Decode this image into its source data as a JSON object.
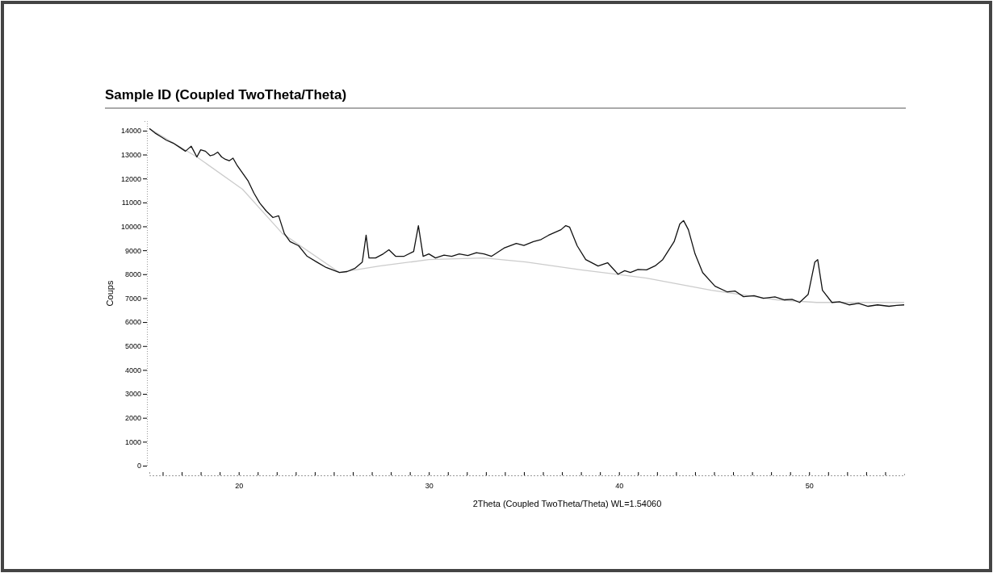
{
  "chart_data": {
    "type": "line",
    "title": "Sample ID (Coupled TwoTheta/Theta)",
    "xlabel": "2Theta (Coupled TwoTheta/Theta) WL=1.54060",
    "ylabel": "Coups",
    "xlim": [
      15.3,
      55
    ],
    "ylim": [
      0,
      14400
    ],
    "xticks": [
      {
        "value": 16,
        "label": null
      },
      {
        "value": 17,
        "label": null
      },
      {
        "value": 18,
        "label": null
      },
      {
        "value": 19,
        "label": null
      },
      20,
      {
        "value": 21,
        "label": null
      },
      {
        "value": 22,
        "label": null
      },
      {
        "value": 23,
        "label": null
      },
      {
        "value": 24,
        "label": null
      },
      {
        "value": 25,
        "label": null
      },
      {
        "value": 26,
        "label": null
      },
      {
        "value": 27,
        "label": null
      },
      {
        "value": 28,
        "label": null
      },
      {
        "value": 29,
        "label": null
      },
      30,
      {
        "value": 31,
        "label": null
      },
      {
        "value": 32,
        "label": null
      },
      {
        "value": 33,
        "label": null
      },
      {
        "value": 34,
        "label": null
      },
      {
        "value": 35,
        "label": null
      },
      {
        "value": 36,
        "label": null
      },
      {
        "value": 37,
        "label": null
      },
      {
        "value": 38,
        "label": null
      },
      {
        "value": 39,
        "label": null
      },
      40,
      {
        "value": 41,
        "label": null
      },
      {
        "value": 42,
        "label": null
      },
      {
        "value": 43,
        "label": null
      },
      {
        "value": 44,
        "label": null
      },
      {
        "value": 45,
        "label": null
      },
      {
        "value": 46,
        "label": null
      },
      {
        "value": 47,
        "label": null
      },
      {
        "value": 48,
        "label": null
      },
      {
        "value": 49,
        "label": null
      },
      50,
      {
        "value": 51,
        "label": null
      },
      {
        "value": 52,
        "label": null
      },
      {
        "value": 53,
        "label": null
      },
      {
        "value": 54,
        "label": null
      }
    ],
    "yticks": [
      0,
      1000,
      2000,
      3000,
      4000,
      5000,
      6000,
      7000,
      8000,
      9000,
      10000,
      11000,
      12000,
      13000,
      14000
    ],
    "grid": false,
    "marker": "none",
    "line_style": "solid",
    "series": [
      {
        "color": "#cccccc",
        "x": [
          15.3,
          17.8,
          20.2,
          22.3,
          25.3,
          27.4,
          30.0,
          32.9,
          35.1,
          38.0,
          41.45,
          44.85,
          48.3,
          50.4,
          55.0
        ],
        "values": [
          14090,
          12900,
          11550,
          9700,
          8070,
          8340,
          8610,
          8680,
          8510,
          8180,
          7840,
          7330,
          6930,
          6820,
          6820
        ]
      },
      {
        "color": "#111111",
        "x": [
          15.3,
          15.6,
          15.9,
          16.2,
          16.55,
          16.9,
          17.2,
          17.5,
          17.8,
          18.0,
          18.25,
          18.5,
          18.7,
          18.9,
          19.1,
          19.3,
          19.5,
          19.7,
          19.9,
          20.2,
          20.5,
          20.8,
          21.1,
          21.45,
          21.8,
          22.1,
          22.4,
          22.7,
          23.15,
          23.6,
          24.1,
          24.6,
          25.3,
          25.7,
          26.1,
          26.5,
          26.7,
          26.85,
          27.2,
          27.6,
          27.9,
          28.25,
          28.7,
          29.2,
          29.45,
          29.7,
          30.0,
          30.35,
          30.8,
          31.2,
          31.6,
          32.05,
          32.5,
          32.9,
          33.3,
          33.95,
          34.6,
          35.0,
          35.5,
          35.9,
          36.3,
          36.95,
          37.2,
          37.4,
          37.8,
          38.25,
          38.9,
          39.4,
          39.95,
          40.3,
          40.6,
          41.0,
          41.45,
          41.9,
          42.3,
          42.9,
          43.2,
          43.4,
          43.65,
          44.0,
          44.4,
          45.05,
          45.7,
          46.1,
          46.55,
          47.1,
          47.6,
          48.2,
          48.7,
          49.1,
          49.5,
          49.95,
          50.3,
          50.45,
          50.7,
          51.2,
          51.6,
          52.1,
          52.6,
          53.1,
          53.6,
          54.2,
          54.6,
          55.0
        ],
        "values": [
          14090,
          13900,
          13750,
          13600,
          13480,
          13300,
          13140,
          13350,
          12900,
          13200,
          13140,
          12950,
          13000,
          13100,
          12900,
          12800,
          12740,
          12850,
          12570,
          12230,
          11890,
          11390,
          10980,
          10640,
          10370,
          10440,
          9700,
          9360,
          9190,
          8750,
          8510,
          8280,
          8070,
          8110,
          8240,
          8510,
          9630,
          8680,
          8680,
          8850,
          9020,
          8750,
          8750,
          8950,
          10030,
          8750,
          8850,
          8680,
          8800,
          8750,
          8850,
          8780,
          8900,
          8850,
          8750,
          9090,
          9290,
          9200,
          9360,
          9450,
          9630,
          9860,
          10030,
          9970,
          9190,
          8610,
          8340,
          8480,
          8000,
          8150,
          8070,
          8200,
          8180,
          8350,
          8610,
          9360,
          10100,
          10240,
          9860,
          8850,
          8070,
          7500,
          7260,
          7300,
          7060,
          7100,
          6990,
          7050,
          6930,
          6950,
          6820,
          7160,
          8510,
          8610,
          7330,
          6820,
          6850,
          6720,
          6780,
          6660,
          6720,
          6660,
          6700,
          6720
        ]
      }
    ]
  }
}
